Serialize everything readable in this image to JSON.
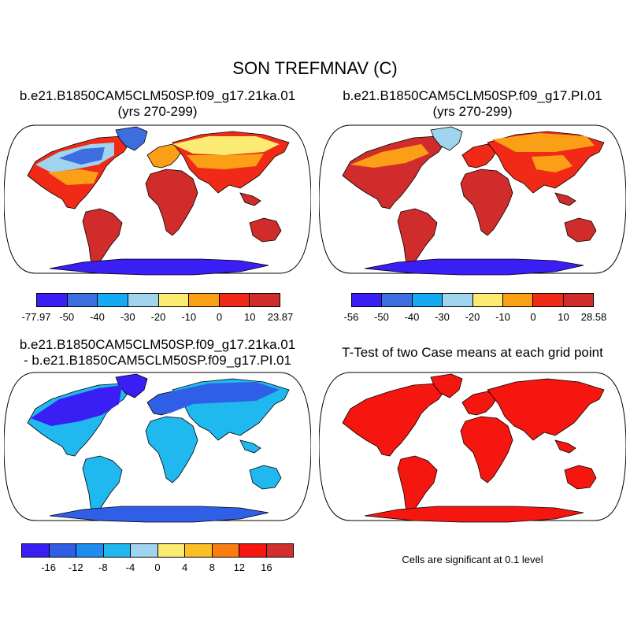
{
  "title": "SON TREFMNAV (C)",
  "panels": [
    {
      "title_line1": "b.e21.B1850CAM5CLM50SP.f09_g17.21ka.01",
      "title_line2": "(yrs 270-299)",
      "mode": "case21ka"
    },
    {
      "title_line1": "b.e21.B1850CAM5CLM50SP.f09_g17.PI.01",
      "title_line2": "(yrs 270-299)",
      "mode": "casePI"
    },
    {
      "title_line1": "b.e21.B1850CAM5CLM50SP.f09_g17.21ka.01",
      "title_line2": "- b.e21.B1850CAM5CLM50SP.f09_g17.PI.01",
      "mode": "diff"
    },
    {
      "title_line1": "T-Test of two Case means at each grid point",
      "title_line2": "",
      "mode": "ttest"
    }
  ],
  "colorbars": [
    {
      "colors": [
        "#3a1ff5",
        "#3d6ee0",
        "#17aaf2",
        "#9fd3ee",
        "#fceb72",
        "#fb9f17",
        "#f02a16",
        "#d02c2c"
      ],
      "labels": [
        "-77.97",
        "-50",
        "-40",
        "-30",
        "-20",
        "-10",
        "0",
        "10",
        "23.87"
      ]
    },
    {
      "colors": [
        "#3a1ff5",
        "#3d6ee0",
        "#17aaf2",
        "#9fd3ee",
        "#fceb72",
        "#fb9f17",
        "#f02a16",
        "#d02c2c"
      ],
      "labels": [
        "-56",
        "-50",
        "-40",
        "-30",
        "-20",
        "-10",
        "0",
        "10",
        "28.58"
      ]
    },
    {
      "colors": [
        "#3a1ff5",
        "#2f5fe6",
        "#1e8cf0",
        "#1fb8ef",
        "#9fd3ee",
        "#fceb72",
        "#fbbf23",
        "#fb7d12",
        "#f5170f",
        "#d42f2f"
      ],
      "labels": [
        "-16",
        "-12",
        "-8",
        "-4",
        "0",
        "4",
        "8",
        "12",
        "16"
      ]
    }
  ],
  "ttest_note": "Cells are significant at 0.1 level"
}
